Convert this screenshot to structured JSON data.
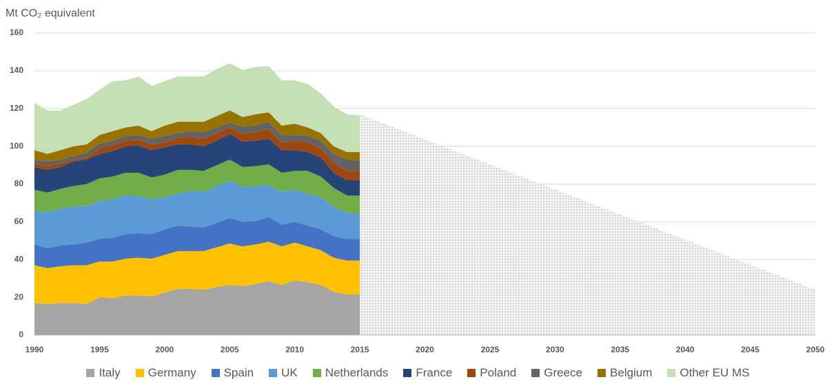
{
  "chart_data": {
    "type": "stacked_area",
    "y_label": "Mt CO₂ equivalent",
    "x": [
      1990,
      1991,
      1992,
      1993,
      1994,
      1995,
      1996,
      1997,
      1998,
      1999,
      2000,
      2001,
      2002,
      2003,
      2004,
      2005,
      2006,
      2007,
      2008,
      2009,
      2010,
      2011,
      2012,
      2013,
      2014,
      2015
    ],
    "series": [
      {
        "name": "Italy",
        "color": "#a5a5a5",
        "values": [
          17,
          16.5,
          17,
          17,
          16.5,
          20,
          19.5,
          21,
          21,
          20.5,
          22.5,
          24.5,
          24.5,
          24,
          25.5,
          26.5,
          26,
          27,
          28.5,
          26.5,
          29,
          28,
          26.5,
          23,
          21.5,
          21.5
        ]
      },
      {
        "name": "Germany",
        "color": "#ffc000",
        "values": [
          20,
          19,
          19.5,
          20,
          20.5,
          19,
          19.5,
          19.5,
          20,
          20,
          20,
          20,
          20,
          20.5,
          21,
          22,
          21,
          21,
          21,
          20.5,
          20,
          19,
          18.5,
          18,
          18,
          18
        ]
      },
      {
        "name": "Spain",
        "color": "#4472c4",
        "values": [
          11,
          10.5,
          11,
          11,
          12,
          12,
          12.5,
          13,
          13,
          13,
          13.5,
          13.5,
          13,
          12.5,
          13,
          13.5,
          13,
          12.5,
          13,
          11.5,
          11,
          11,
          11,
          11.5,
          11.5,
          11.5
        ]
      },
      {
        "name": "UK",
        "color": "#5b9bd5",
        "values": [
          18,
          19,
          19.5,
          20,
          19.5,
          20,
          20.5,
          20.5,
          20,
          18.5,
          17,
          17,
          19,
          19,
          19.5,
          20,
          18.5,
          18.5,
          17,
          17.5,
          17,
          17,
          17,
          15.5,
          14,
          13
        ]
      },
      {
        "name": "Netherlands",
        "color": "#70ad47",
        "values": [
          11,
          10.5,
          10.5,
          11,
          11.5,
          12,
          12,
          12,
          12,
          11.5,
          12,
          12.5,
          11,
          11,
          11,
          11,
          10.5,
          10.5,
          11,
          10,
          10,
          12,
          11,
          10,
          9,
          10
        ]
      },
      {
        "name": "France",
        "color": "#264478",
        "values": [
          12,
          12,
          11.5,
          13,
          13,
          13,
          13.5,
          14,
          14.5,
          14.5,
          14.5,
          13.5,
          13.5,
          13,
          13,
          13.5,
          13.5,
          13.5,
          13.5,
          12,
          11,
          10,
          10,
          8,
          8,
          8
        ]
      },
      {
        "name": "Poland",
        "color": "#9e480e",
        "values": [
          2,
          2,
          2,
          1,
          1,
          3,
          3,
          3,
          3,
          3,
          2.5,
          3.5,
          4,
          4,
          4,
          3.5,
          4,
          4.5,
          5,
          4,
          5,
          5,
          5,
          5,
          5,
          5
        ]
      },
      {
        "name": "Greece",
        "color": "#636363",
        "values": [
          2,
          2.5,
          2,
          2,
          2.5,
          2.5,
          2.5,
          2.5,
          2.5,
          3,
          3.5,
          2.5,
          3,
          3.5,
          3,
          2.5,
          4,
          3.5,
          4,
          4,
          3,
          3.5,
          4,
          5,
          6,
          5.5
        ]
      },
      {
        "name": "Belgium",
        "color": "#997300",
        "values": [
          5,
          4,
          5,
          5,
          4.5,
          4.5,
          5,
          4.5,
          5,
          4,
          5.5,
          6,
          5,
          5.5,
          6,
          6.5,
          5,
          6,
          5,
          5,
          6,
          4.5,
          4,
          4,
          4,
          4.5
        ]
      },
      {
        "name": "Other EU MS",
        "color": "#c5e0b4",
        "values": [
          25,
          23,
          21,
          22,
          24,
          24,
          26.5,
          25,
          26,
          24,
          23.5,
          24,
          24,
          24,
          25,
          25,
          25,
          25,
          24.5,
          24,
          23,
          23,
          21,
          21,
          20,
          19.5
        ]
      }
    ],
    "projection": {
      "x": [
        2015,
        2050
      ],
      "values": [
        117,
        24
      ]
    },
    "xlim": [
      1990,
      2050
    ],
    "xticks": [
      1990,
      1995,
      2000,
      2005,
      2010,
      2015,
      2020,
      2025,
      2030,
      2035,
      2040,
      2045,
      2050
    ],
    "ylim": [
      0,
      160
    ],
    "yticks": [
      0,
      20,
      40,
      60,
      80,
      100,
      120,
      140,
      160
    ],
    "grid": true,
    "legend": "bottom"
  }
}
